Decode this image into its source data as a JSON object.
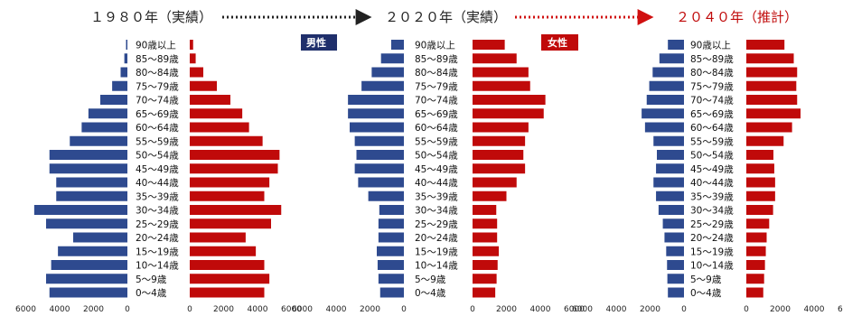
{
  "header": {
    "t1980": "１９８０年（実績）",
    "t2020": "２０２０年（実績）",
    "t2040": "２０４０年（推計）"
  },
  "legend": {
    "male": "男性",
    "female": "女性"
  },
  "colors": {
    "male": "#2e4a8f",
    "female": "#c00a0a",
    "arrow_black": "#222222",
    "arrow_red": "#d01010",
    "badge_male": "#1f2f6b",
    "badge_female": "#c00a0a"
  },
  "chart_data": {
    "type": "bar",
    "categories": [
      "90歳以上",
      "85～89歳",
      "80～84歳",
      "75～79歳",
      "70～74歳",
      "65～69歳",
      "60～64歳",
      "55～59歳",
      "50～54歳",
      "45～49歳",
      "40～44歳",
      "35～39歳",
      "30～34歳",
      "25～29歳",
      "20～24歳",
      "15～19歳",
      "10～14歳",
      "5～9歳",
      "0～4歳"
    ],
    "x_ticks_male": [
      "6000",
      "4000",
      "2000",
      "0"
    ],
    "x_ticks_female": [
      "0",
      "2000",
      "4000",
      "6000"
    ],
    "xlim": [
      0,
      6000
    ],
    "panels": [
      {
        "year": "1980",
        "male": [
          80,
          180,
          400,
          900,
          1600,
          2300,
          2700,
          3400,
          4600,
          4600,
          4200,
          4200,
          5500,
          4800,
          3200,
          4100,
          4500,
          4800,
          4600
        ],
        "female": [
          200,
          350,
          800,
          1600,
          2400,
          3100,
          3500,
          4300,
          5300,
          5200,
          4700,
          4400,
          5400,
          4800,
          3300,
          3900,
          4400,
          4700,
          4400
        ]
      },
      {
        "year": "2020",
        "male": [
          750,
          1350,
          1900,
          2500,
          3300,
          3300,
          3200,
          2900,
          2800,
          2900,
          2700,
          2100,
          1450,
          1500,
          1500,
          1600,
          1550,
          1500,
          1400
        ],
        "female": [
          1900,
          2600,
          3300,
          3400,
          4300,
          4200,
          3300,
          3100,
          3000,
          3100,
          2600,
          2000,
          1400,
          1450,
          1450,
          1550,
          1480,
          1420,
          1340
        ]
      },
      {
        "year": "2040",
        "male": [
          950,
          1450,
          1850,
          2050,
          2200,
          2500,
          2300,
          1800,
          1600,
          1650,
          1800,
          1650,
          1500,
          1250,
          1150,
          1050,
          1000,
          980,
          950
        ],
        "female": [
          2250,
          2800,
          3000,
          2950,
          3000,
          3200,
          2700,
          2200,
          1600,
          1650,
          1700,
          1700,
          1580,
          1350,
          1200,
          1150,
          1100,
          1050,
          1000
        ]
      }
    ]
  }
}
